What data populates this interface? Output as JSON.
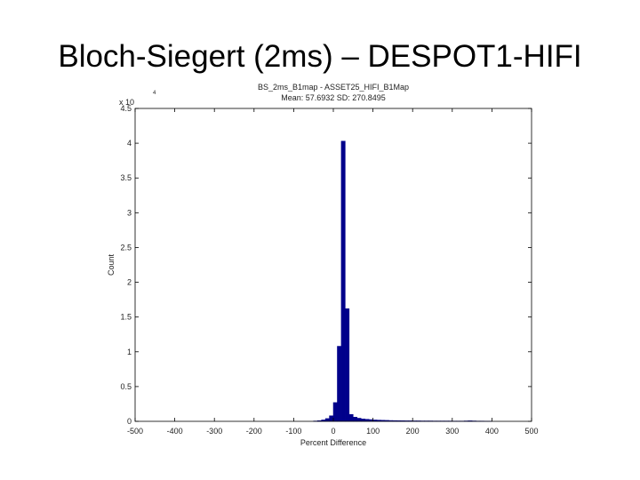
{
  "slide_title": "Bloch-Siegert (2ms) – DESPOT1-HIFI",
  "chart_data": {
    "type": "histogram",
    "title": "BS_2ms_B1map - ASSET25_HIFI_B1Map",
    "subtitle": "Mean: 57.6932 SD: 270.8495",
    "x_label": "Percent Difference",
    "y_label": "Count",
    "y_multiplier": {
      "base": "x 10",
      "exponent": "4"
    },
    "color": "#00008b",
    "bins": [
      -50,
      -40,
      -30,
      -20,
      -10,
      0,
      10,
      20,
      30,
      40,
      50,
      60,
      70,
      80,
      90,
      100,
      110,
      120,
      130,
      140,
      150,
      160,
      170,
      180,
      190,
      200,
      210,
      220,
      230,
      240,
      250,
      260,
      270,
      280,
      290,
      300,
      310,
      320,
      330,
      340,
      350,
      360,
      370,
      380,
      390,
      400
    ],
    "values": [
      0.005,
      0.01,
      0.02,
      0.04,
      0.08,
      0.27,
      1.08,
      4.03,
      1.62,
      0.1,
      0.06,
      0.045,
      0.035,
      0.03,
      0.025,
      0.02,
      0.018,
      0.016,
      0.014,
      0.012,
      0.011,
      0.01,
      0.009,
      0.008,
      0.008,
      0.007,
      0.007,
      0.006,
      0.006,
      0.006,
      0.005,
      0.005,
      0.005,
      0.005,
      0.005,
      0.004,
      0.004,
      0.004,
      0.006,
      0.008,
      0.006,
      0.004,
      0.004,
      0.003,
      0.003
    ],
    "xlim": [
      -500,
      500
    ],
    "xticks": [
      -500,
      -400,
      -300,
      -200,
      -100,
      0,
      100,
      200,
      300,
      400,
      500
    ],
    "ylim": [
      0,
      4.5
    ],
    "yticks": [
      0,
      0.5,
      1,
      1.5,
      2,
      2.5,
      3,
      3.5,
      4,
      4.5
    ]
  }
}
